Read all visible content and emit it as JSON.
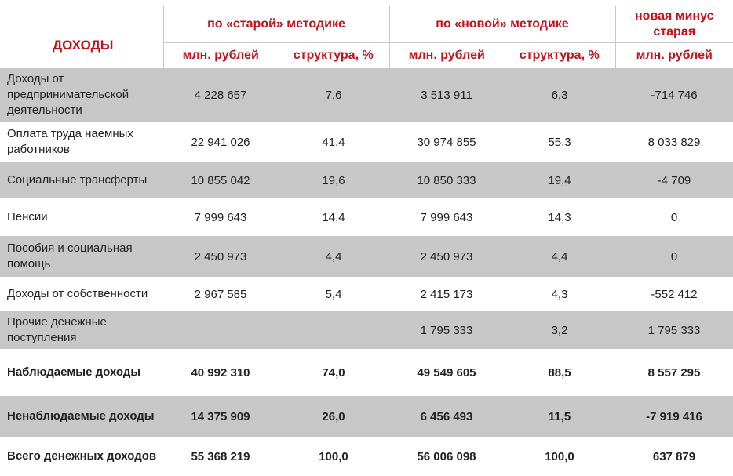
{
  "header": {
    "title": "ДОХОДЫ",
    "group_old": "по «старой» методике",
    "group_new": "по «новой» методике",
    "group_diff": "новая минус старая",
    "unit_mln": "млн. рублей",
    "unit_struct": "структура, %"
  },
  "rows": [
    {
      "label": "Доходы от предпринимательской деятельности",
      "old_mln": "4 228 657",
      "old_pct": "7,6",
      "new_mln": "3 513 911",
      "new_pct": "6,3",
      "diff": "-714 746"
    },
    {
      "label": "Оплата труда наемных работников",
      "old_mln": "22 941 026",
      "old_pct": "41,4",
      "new_mln": "30 974 855",
      "new_pct": "55,3",
      "diff": "8 033 829"
    },
    {
      "label": "Социальные трансферты",
      "old_mln": "10 855 042",
      "old_pct": "19,6",
      "new_mln": "10 850 333",
      "new_pct": "19,4",
      "diff": "-4 709"
    },
    {
      "label": "Пенсии",
      "old_mln": "7 999 643",
      "old_pct": "14,4",
      "new_mln": "7 999 643",
      "new_pct": "14,3",
      "diff": "0"
    },
    {
      "label": "Пособия и социальная помощь",
      "old_mln": "2 450 973",
      "old_pct": "4,4",
      "new_mln": "2 450 973",
      "new_pct": "4,4",
      "diff": "0"
    },
    {
      "label": "Доходы от собственности",
      "old_mln": "2 967 585",
      "old_pct": "5,4",
      "new_mln": "2 415 173",
      "new_pct": "4,3",
      "diff": "-552 412"
    },
    {
      "label": "Прочие денежные поступления",
      "old_mln": "",
      "old_pct": "",
      "new_mln": "1 795 333",
      "new_pct": "3,2",
      "diff": "1 795 333"
    },
    {
      "label": "Наблюдаемые доходы",
      "old_mln": "40 992 310",
      "old_pct": "74,0",
      "new_mln": "49 549 605",
      "new_pct": "88,5",
      "diff": "8 557 295"
    },
    {
      "label": "Ненаблюдаемые доходы",
      "old_mln": "14 375 909",
      "old_pct": "26,0",
      "new_mln": "6 456 493",
      "new_pct": "11,5",
      "diff": "-7 919 416"
    },
    {
      "label": "Всего денежных доходов",
      "old_mln": "55 368 219",
      "old_pct": "100,0",
      "new_mln": "56 006 098",
      "new_pct": "100,0",
      "diff": "637 879"
    }
  ]
}
